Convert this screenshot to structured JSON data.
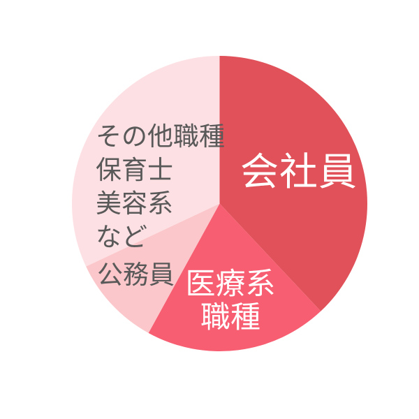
{
  "chart_data": {
    "type": "pie",
    "title": "",
    "legend_position": "none",
    "start_angle_deg": 0,
    "direction": "clockwise",
    "background_color": "#ffffff",
    "segments": [
      {
        "id": "kaishain",
        "label": "会社員",
        "label_lines": [
          "会社員"
        ],
        "value_pct": 38,
        "color": "#e15159",
        "label_color": "#ffffff"
      },
      {
        "id": "iryokei-shokushu",
        "label": "医療系職種",
        "label_lines": [
          "医療系",
          "職種"
        ],
        "value_pct": 20,
        "color": "#f85e72",
        "label_color": "#ffffff"
      },
      {
        "id": "komuin",
        "label": "公務員",
        "label_lines": [
          "公務員"
        ],
        "value_pct": 10,
        "color": "#fbc7ca",
        "label_color": "#595959"
      },
      {
        "id": "sonota-shokushu",
        "label": "その他職種 保育士 美容系 など",
        "label_lines": [
          "その他職種",
          "保育士",
          "美容系",
          "など"
        ],
        "value_pct": 32,
        "color": "#fde0e3",
        "label_color": "#595959"
      }
    ]
  }
}
